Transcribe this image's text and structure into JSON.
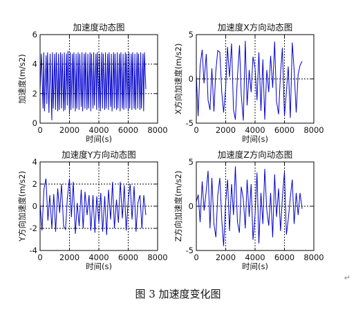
{
  "figure_caption": "图 3  加速度变化图",
  "paragraph_mark": "↵",
  "colors": {
    "line": "#0000cc",
    "axes": "#000000",
    "grid": "#000000"
  },
  "chart_data": [
    {
      "type": "line",
      "title": "加速度动态图",
      "xlabel": "时间(s)",
      "ylabel": "加速度(m/s2)",
      "xlim": [
        0,
        8000
      ],
      "ylim": [
        0,
        6
      ],
      "xticks": [
        0,
        2000,
        4000,
        6000,
        8000
      ],
      "yticks": [
        0,
        2,
        4,
        6
      ],
      "xtick_labels": [
        "0",
        "2000",
        "4000",
        "6000",
        "8000"
      ],
      "ytick_labels": [
        "0",
        "2",
        "4",
        "6"
      ],
      "grid": true,
      "series": [
        {
          "x": [
            0,
            90,
            200,
            250,
            300,
            410,
            460,
            510,
            600,
            680,
            800,
            840,
            900,
            990,
            1050,
            1100,
            1200,
            1250,
            1300,
            1390,
            1450,
            1500,
            1600,
            1650,
            1700,
            1800,
            1850,
            1900,
            2000,
            2050,
            2100,
            2200,
            2250,
            2300,
            2400,
            2450,
            2500,
            2590,
            2650,
            2700,
            2800,
            2850,
            2900,
            3000,
            3050,
            3100,
            3190,
            3250,
            3300,
            3400,
            3450,
            3500,
            3600,
            3650,
            3700,
            3800,
            3850,
            3900,
            4000,
            4050,
            4100,
            4200,
            4250,
            4300,
            4400,
            4450,
            4500,
            4600,
            4650,
            4700,
            4800,
            4850,
            4900,
            5000,
            5050,
            5100,
            5200,
            5250,
            5300,
            5400,
            5450,
            5500,
            5600,
            5650,
            5700,
            5800,
            5850,
            5900,
            6000,
            6050,
            6100,
            6200,
            6250,
            6300,
            6400,
            6450,
            6500,
            6600,
            6650,
            6700,
            6800,
            6850,
            6900,
            7000,
            7050,
            7100,
            7200
          ],
          "y": [
            2.2,
            4.7,
            1.0,
            4.8,
            0.8,
            4.6,
            1.3,
            4.8,
            0.7,
            4.7,
            0.2,
            4.8,
            1.0,
            4.7,
            0.9,
            4.8,
            0.8,
            4.7,
            0.9,
            4.8,
            1.0,
            4.7,
            0.8,
            4.8,
            0.9,
            4.7,
            1.2,
            4.9,
            0.6,
            4.8,
            0.9,
            4.7,
            1.0,
            4.8,
            0.8,
            4.7,
            1.0,
            4.8,
            0.9,
            4.7,
            1.1,
            4.8,
            0.8,
            4.7,
            1.0,
            4.8,
            0.9,
            4.7,
            1.0,
            4.8,
            0.8,
            4.7,
            1.0,
            4.8,
            1.2,
            4.7,
            0.9,
            4.8,
            1.0,
            4.7,
            0.8,
            4.8,
            1.0,
            4.7,
            0.9,
            4.8,
            1.0,
            4.7,
            0.9,
            4.8,
            1.1,
            4.7,
            0.8,
            4.8,
            1.0,
            4.7,
            0.9,
            4.8,
            1.0,
            4.7,
            0.8,
            4.8,
            1.0,
            4.7,
            0.9,
            4.8,
            1.0,
            4.7,
            0.8,
            4.8,
            1.0,
            4.7,
            0.9,
            4.8,
            1.0,
            4.7,
            0.9,
            4.8,
            1.0,
            4.7,
            0.9,
            4.8,
            1.0,
            4.7,
            0.8,
            4.8,
            2.3
          ]
        }
      ]
    },
    {
      "type": "line",
      "title": "加速度X方向动态图",
      "xlabel": "时间(s)",
      "ylabel": "X方向加速度(m/s2)",
      "xlim": [
        0,
        8000
      ],
      "ylim": [
        -5,
        5
      ],
      "xticks": [
        0,
        2000,
        4000,
        6000,
        8000
      ],
      "yticks": [
        -5,
        0,
        5
      ],
      "xtick_labels": [
        "0",
        "2000",
        "4000",
        "6000",
        "8000"
      ],
      "ytick_labels": [
        "-5",
        "0",
        "5"
      ],
      "grid": true,
      "series": [
        {
          "x": [
            0,
            120,
            260,
            400,
            520,
            680,
            800,
            930,
            1060,
            1200,
            1320,
            1460,
            1600,
            1730,
            1860,
            2000,
            2120,
            2260,
            2400,
            2530,
            2660,
            2800,
            2940,
            3060,
            3200,
            3330,
            3460,
            3600,
            3730,
            3860,
            4000,
            4130,
            4260,
            4400,
            4530,
            4660,
            4800,
            4930,
            5060,
            5200,
            5330,
            5460,
            5600,
            5730,
            5860,
            6000,
            6130,
            6260,
            6400,
            6530,
            6660,
            6800,
            6930,
            7060,
            7200
          ],
          "y": [
            0.5,
            -4.2,
            1.5,
            3.3,
            -0.5,
            2.8,
            -2.4,
            -3.5,
            1.2,
            -3.7,
            0.8,
            3.2,
            3.0,
            -1.5,
            -3.8,
            -1.0,
            3.6,
            0.2,
            4.0,
            -3.5,
            -4.6,
            0.3,
            3.8,
            -1.8,
            -4.7,
            4.3,
            -3.0,
            1.0,
            -1.5,
            2.5,
            1.2,
            -2.4,
            3.0,
            -3.6,
            2.2,
            -4.6,
            1.0,
            -1.5,
            2.6,
            -1.0,
            4.2,
            -2.5,
            -4.0,
            0.6,
            3.5,
            -4.2,
            -1.5,
            1.4,
            -4.4,
            4.1,
            1.0,
            -3.8,
            0.5,
            1.5,
            2.0
          ]
        }
      ]
    },
    {
      "type": "line",
      "title": "加速度Y方向动态图",
      "xlabel": "时间(s)",
      "ylabel": "Y方向加速度(m/s2)",
      "xlim": [
        0,
        8000
      ],
      "ylim": [
        -4,
        4
      ],
      "xticks": [
        0,
        2000,
        4000,
        6000,
        8000
      ],
      "yticks": [
        -4,
        -2,
        0,
        2,
        4
      ],
      "xtick_labels": [
        "0",
        "2000",
        "4000",
        "6000",
        "8000"
      ],
      "ytick_labels": [
        "-4",
        "-2",
        "0",
        "2",
        "4"
      ],
      "grid": true,
      "series": [
        {
          "x": [
            0,
            130,
            260,
            400,
            530,
            660,
            800,
            930,
            1060,
            1200,
            1330,
            1460,
            1600,
            1730,
            1860,
            2000,
            2130,
            2260,
            2400,
            2530,
            2660,
            2800,
            2930,
            3060,
            3200,
            3330,
            3460,
            3600,
            3730,
            3860,
            4000,
            4130,
            4260,
            4400,
            4530,
            4660,
            4800,
            4930,
            5060,
            5200,
            5330,
            5460,
            5600,
            5730,
            5860,
            6000,
            6130,
            6260,
            6400,
            6530,
            6660,
            6800,
            6930,
            7060,
            7200
          ],
          "y": [
            0.2,
            -2.2,
            1.5,
            2.5,
            -1.3,
            1.0,
            -2.0,
            1.1,
            -2.3,
            1.6,
            -0.6,
            2.0,
            -1.8,
            -2.1,
            0.8,
            2.5,
            -1.0,
            2.2,
            -2.5,
            0.3,
            -1.8,
            1.5,
            -2.0,
            1.3,
            -0.8,
            1.0,
            -2.2,
            1.0,
            -2.4,
            0.9,
            -1.5,
            1.2,
            -2.3,
            0.9,
            -2.6,
            1.5,
            -1.2,
            2.2,
            -2.0,
            0.6,
            -1.5,
            2.2,
            -1.1,
            1.9,
            -2.2,
            0.5,
            2.0,
            -1.2,
            1.8,
            -2.3,
            0.3,
            1.0,
            -2.0,
            1.0,
            -0.8
          ]
        }
      ]
    },
    {
      "type": "line",
      "title": "加速度Z方向动态图",
      "xlabel": "时间(s)",
      "ylabel": "Z方向加速度(m/s2)",
      "xlim": [
        0,
        8000
      ],
      "ylim": [
        -5,
        5
      ],
      "xticks": [
        0,
        2000,
        4000,
        6000,
        8000
      ],
      "yticks": [
        -5,
        0,
        5
      ],
      "xtick_labels": [
        "0",
        "2000",
        "4000",
        "6000",
        "8000"
      ],
      "ytick_labels": [
        "-5",
        "0",
        "5"
      ],
      "grid": true,
      "series": [
        {
          "x": [
            0,
            130,
            260,
            400,
            530,
            660,
            800,
            930,
            1060,
            1200,
            1330,
            1460,
            1600,
            1730,
            1860,
            2000,
            2130,
            2260,
            2400,
            2530,
            2660,
            2800,
            2930,
            3060,
            3200,
            3330,
            3460,
            3600,
            3730,
            3860,
            4000,
            4130,
            4260,
            4400,
            4530,
            4660,
            4800,
            4930,
            5060,
            5200,
            5330,
            5460,
            5600,
            5730,
            5860,
            6000,
            6130,
            6260,
            6400,
            6530,
            6660,
            6800,
            6930,
            7060,
            7200
          ],
          "y": [
            0.5,
            1.3,
            -1.8,
            2.8,
            -0.5,
            1.5,
            4.0,
            -2.5,
            3.2,
            -2.0,
            -3.5,
            1.2,
            3.2,
            -1.5,
            -4.5,
            0.5,
            3.0,
            -2.8,
            2.5,
            -1.0,
            4.5,
            -1.8,
            -3.0,
            2.2,
            0.8,
            -2.5,
            3.0,
            -1.2,
            2.5,
            -3.8,
            -1.0,
            3.8,
            -4.2,
            1.5,
            -2.0,
            4.2,
            -0.5,
            -2.2,
            1.5,
            -3.5,
            3.6,
            -1.2,
            2.0,
            -2.8,
            1.0,
            3.9,
            -3.2,
            -1.5,
            1.0,
            3.0,
            -2.0,
            1.5,
            -1.0,
            1.5,
            -0.3
          ]
        }
      ]
    }
  ]
}
